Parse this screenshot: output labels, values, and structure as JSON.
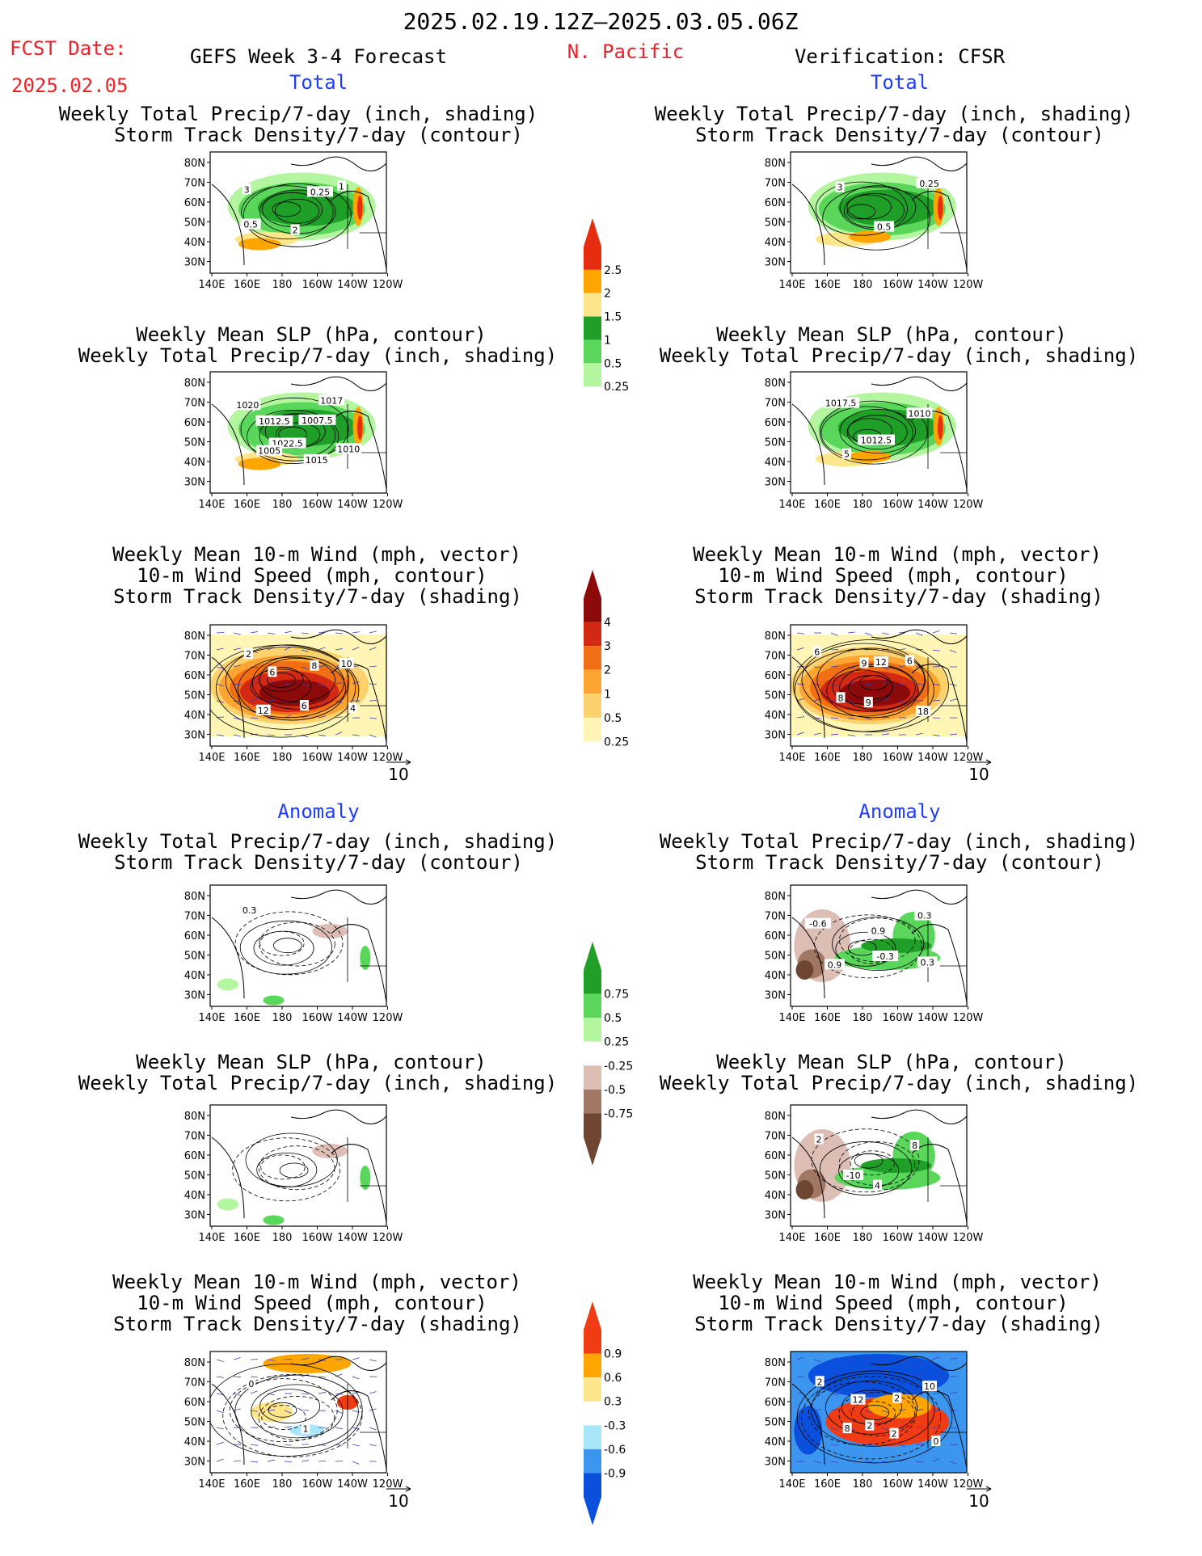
{
  "header": {
    "date_range": "2025.02.19.12Z–2025.03.05.06Z",
    "fcst_label": "FCST Date:",
    "fcst_date": "2025.02.05",
    "forecast_title": "GEFS Week 3-4 Forecast",
    "region": "N. Pacific",
    "verification": "Verification: CFSR"
  },
  "sections": {
    "total": "Total",
    "anomaly": "Anomaly"
  },
  "panel_titles": {
    "precip_storm": [
      "Weekly Total Precip/7-day (inch, shading)",
      "Storm Track Density/7-day (contour)"
    ],
    "slp_precip": [
      "Weekly Mean SLP (hPa, contour)",
      "Weekly Total Precip/7-day (inch, shading)"
    ],
    "wind_storm": [
      "Weekly Mean 10-m Wind (mph, vector)",
      "10-m Wind Speed (mph, contour)",
      "Storm Track Density/7-day (shading)"
    ]
  },
  "axes": {
    "lat_ticks": [
      "80N",
      "70N",
      "60N",
      "50N",
      "40N",
      "30N"
    ],
    "lon_ticks": [
      "140E",
      "160E",
      "180",
      "160W",
      "140W",
      "120W"
    ],
    "vector_ref": "10"
  },
  "colorbars": {
    "precip_total": {
      "labels": [
        "2.5",
        "2",
        "1.5",
        "1",
        "0.5",
        "0.25"
      ],
      "colors": [
        "#ffffff",
        "#b4f5a0",
        "#5ad75a",
        "#1f9e28",
        "#ffe68c",
        "#ffa500",
        "#e62d0f"
      ]
    },
    "storm_total": {
      "labels": [
        "4",
        "3",
        "2",
        "1",
        "0.5",
        "0.25"
      ],
      "colors": [
        "#ffffff",
        "#fff5b4",
        "#fcd26e",
        "#fca532",
        "#f06e14",
        "#d22814",
        "#8c0a0a"
      ]
    },
    "precip_anom": {
      "labels": [
        "0.75",
        "0.5",
        "0.25",
        "-0.25",
        "-0.5",
        "-0.75"
      ],
      "colors": [
        "#6e4632",
        "#a07864",
        "#dcbeb4",
        "#ffffff",
        "#b4f5a0",
        "#5ad75a",
        "#1f9e28"
      ]
    },
    "storm_anom": {
      "labels": [
        "0.9",
        "0.6",
        "0.3",
        "-0.3",
        "-0.6",
        "-0.9"
      ],
      "colors": [
        "#0a50dc",
        "#3c96f0",
        "#aae6fa",
        "#ffffff",
        "#ffe68c",
        "#ffa500",
        "#f03c14"
      ]
    }
  },
  "chart_data": [
    {
      "type": "heatmap",
      "panel": "forecast-total-precip-storm",
      "contour_labels": [
        "3",
        "2",
        "1",
        "0.5",
        "0.25"
      ]
    },
    {
      "type": "heatmap",
      "panel": "verification-total-precip-storm",
      "contour_labels": [
        "3",
        "0.5",
        "0.25"
      ]
    },
    {
      "type": "heatmap",
      "panel": "forecast-total-slp-precip",
      "contour_labels": [
        "1020",
        "1022.5",
        "1017",
        "1005",
        "1007.5",
        "1010",
        "1012.5",
        "1015"
      ]
    },
    {
      "type": "heatmap",
      "panel": "verification-total-slp-precip",
      "contour_labels": [
        "1017.5",
        "1012.5",
        "1010",
        "5"
      ]
    },
    {
      "type": "heatmap",
      "panel": "forecast-total-wind-storm",
      "contour_labels": [
        "2",
        "6",
        "10",
        "12",
        "8",
        "4",
        "6"
      ]
    },
    {
      "type": "heatmap",
      "panel": "verification-total-wind-storm",
      "contour_labels": [
        "6",
        "9",
        "6",
        "8",
        "12",
        "18",
        "9"
      ]
    },
    {
      "type": "heatmap",
      "panel": "forecast-anom-precip-storm",
      "contour_labels": [
        "0.3"
      ]
    },
    {
      "type": "heatmap",
      "panel": "verification-anom-precip-storm",
      "contour_labels": [
        "-0.6",
        "-0.3",
        "0.3",
        "0.9",
        "0.9",
        "0.3"
      ]
    },
    {
      "type": "heatmap",
      "panel": "forecast-anom-slp-precip",
      "contour_labels": []
    },
    {
      "type": "heatmap",
      "panel": "verification-anom-slp-precip",
      "contour_labels": [
        "2",
        "4",
        "8",
        "-10"
      ]
    },
    {
      "type": "heatmap",
      "panel": "forecast-anom-wind-storm",
      "contour_labels": [
        "0",
        "1"
      ]
    },
    {
      "type": "heatmap",
      "panel": "verification-anom-wind-storm",
      "contour_labels": [
        "2",
        "2",
        "10",
        "8",
        "2",
        "0",
        "12",
        "2"
      ]
    }
  ]
}
